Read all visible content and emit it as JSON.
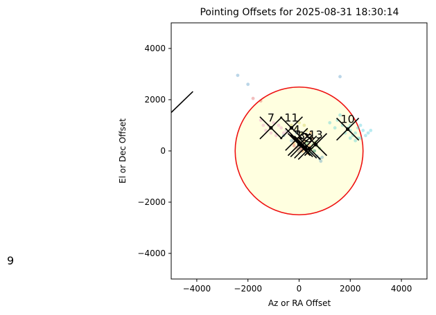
{
  "chart_data": {
    "type": "scatter",
    "title": "Pointing Offsets for 2025-08-31 18:30:14",
    "xlabel": "Az or RA Offset",
    "ylabel": "El or Dec Offset",
    "xlim": [
      -5000,
      5000
    ],
    "ylim": [
      -5000,
      5000
    ],
    "xticks": [
      -4000,
      -2000,
      0,
      2000,
      4000
    ],
    "yticks": [
      -4000,
      -2000,
      0,
      2000,
      4000
    ],
    "tick_labels_x": [
      "−4000",
      "−2000",
      "0",
      "2000",
      "4000"
    ],
    "tick_labels_y": [
      "−4000",
      "−2000",
      "0",
      "2000",
      "4000"
    ],
    "grid": false,
    "circle": {
      "center": [
        0,
        0
      ],
      "radius": 2500,
      "edge_color": "#ee1111",
      "fill_color": "#ffffe0"
    },
    "outside_label": "9",
    "outside_segment": {
      "from": [
        -5000,
        1500
      ],
      "to": [
        -4150,
        2320
      ]
    },
    "markers": [
      {
        "label": "7",
        "x": -1100,
        "y": 900
      },
      {
        "label": "11",
        "x": -300,
        "y": 900
      },
      {
        "label": "4",
        "x": -100,
        "y": 450
      },
      {
        "label": "1",
        "x": 0,
        "y": 250
      },
      {
        "label": "3",
        "x": 100,
        "y": 200
      },
      {
        "label": "2",
        "x": 250,
        "y": 150
      },
      {
        "label": "5",
        "x": 400,
        "y": 100
      },
      {
        "label": "13",
        "x": 650,
        "y": 250
      },
      {
        "label": "10",
        "x": 1900,
        "y": 850
      }
    ],
    "series": [
      {
        "color": "#1f77b4",
        "points": [
          [
            -2400,
            2950
          ],
          [
            -2000,
            2600
          ],
          [
            1600,
            2900
          ],
          [
            -600,
            600
          ],
          [
            -300,
            400
          ],
          [
            700,
            -200
          ],
          [
            800,
            -300
          ],
          [
            850,
            -400
          ],
          [
            500,
            -100
          ],
          [
            600,
            0
          ],
          [
            900,
            -250
          ],
          [
            -100,
            700
          ]
        ]
      },
      {
        "color": "#ff7f0e",
        "points": [
          [
            200,
            400
          ],
          [
            300,
            600
          ],
          [
            100,
            300
          ],
          [
            400,
            200
          ],
          [
            500,
            500
          ],
          [
            250,
            100
          ],
          [
            350,
            -100
          ],
          [
            150,
            0
          ],
          [
            600,
            300
          ],
          [
            450,
            700
          ],
          [
            0,
            500
          ],
          [
            -200,
            300
          ]
        ]
      },
      {
        "color": "#2ca02c",
        "points": [
          [
            300,
            300
          ],
          [
            500,
            100
          ],
          [
            600,
            0
          ],
          [
            700,
            200
          ],
          [
            400,
            -50
          ],
          [
            200,
            150
          ],
          [
            800,
            100
          ],
          [
            650,
            350
          ],
          [
            550,
            250
          ]
        ]
      },
      {
        "color": "#d62728",
        "points": [
          [
            -1800,
            2050
          ],
          [
            -1500,
            1950
          ],
          [
            -200,
            200
          ],
          [
            100,
            100
          ]
        ]
      },
      {
        "color": "#9467bd",
        "points": [
          [
            -500,
            800
          ],
          [
            -300,
            600
          ],
          [
            -100,
            400
          ],
          [
            0,
            300
          ],
          [
            -200,
            500
          ],
          [
            100,
            250
          ],
          [
            -400,
            700
          ]
        ]
      },
      {
        "color": "#8c564b",
        "points": [
          [
            -100,
            100
          ],
          [
            0,
            -50
          ],
          [
            100,
            0
          ],
          [
            -50,
            150
          ],
          [
            50,
            50
          ]
        ]
      },
      {
        "color": "#e377c2",
        "points": [
          [
            -1500,
            1200
          ],
          [
            -1200,
            1000
          ],
          [
            -1000,
            1100
          ],
          [
            -1300,
            800
          ],
          [
            -900,
            600
          ],
          [
            -700,
            900
          ],
          [
            -1100,
            700
          ],
          [
            -800,
            1000
          ],
          [
            -600,
            700
          ],
          [
            -1400,
            1000
          ]
        ]
      },
      {
        "color": "#7f7f7f",
        "points": [
          [
            -200,
            400
          ],
          [
            0,
            200
          ],
          [
            200,
            300
          ],
          [
            100,
            500
          ]
        ]
      },
      {
        "color": "#bcbd22",
        "points": [
          [
            -100,
            900
          ],
          [
            100,
            700
          ],
          [
            300,
            800
          ],
          [
            -300,
            1000
          ],
          [
            200,
            1000
          ],
          [
            0,
            1100
          ]
        ]
      },
      {
        "color": "#17becf",
        "points": [
          [
            1500,
            1200
          ],
          [
            1700,
            1000
          ],
          [
            1900,
            900
          ],
          [
            2000,
            800
          ],
          [
            2200,
            700
          ],
          [
            2400,
            500
          ],
          [
            2500,
            800
          ],
          [
            2700,
            700
          ],
          [
            2300,
            900
          ],
          [
            2100,
            600
          ],
          [
            2200,
            400
          ],
          [
            2600,
            600
          ],
          [
            1800,
            700
          ],
          [
            2000,
            1000
          ],
          [
            1400,
            900
          ],
          [
            1600,
            1400
          ],
          [
            2400,
            1000
          ],
          [
            2800,
            800
          ],
          [
            1200,
            1100
          ],
          [
            2300,
            500
          ],
          [
            2000,
            500
          ]
        ]
      }
    ]
  }
}
